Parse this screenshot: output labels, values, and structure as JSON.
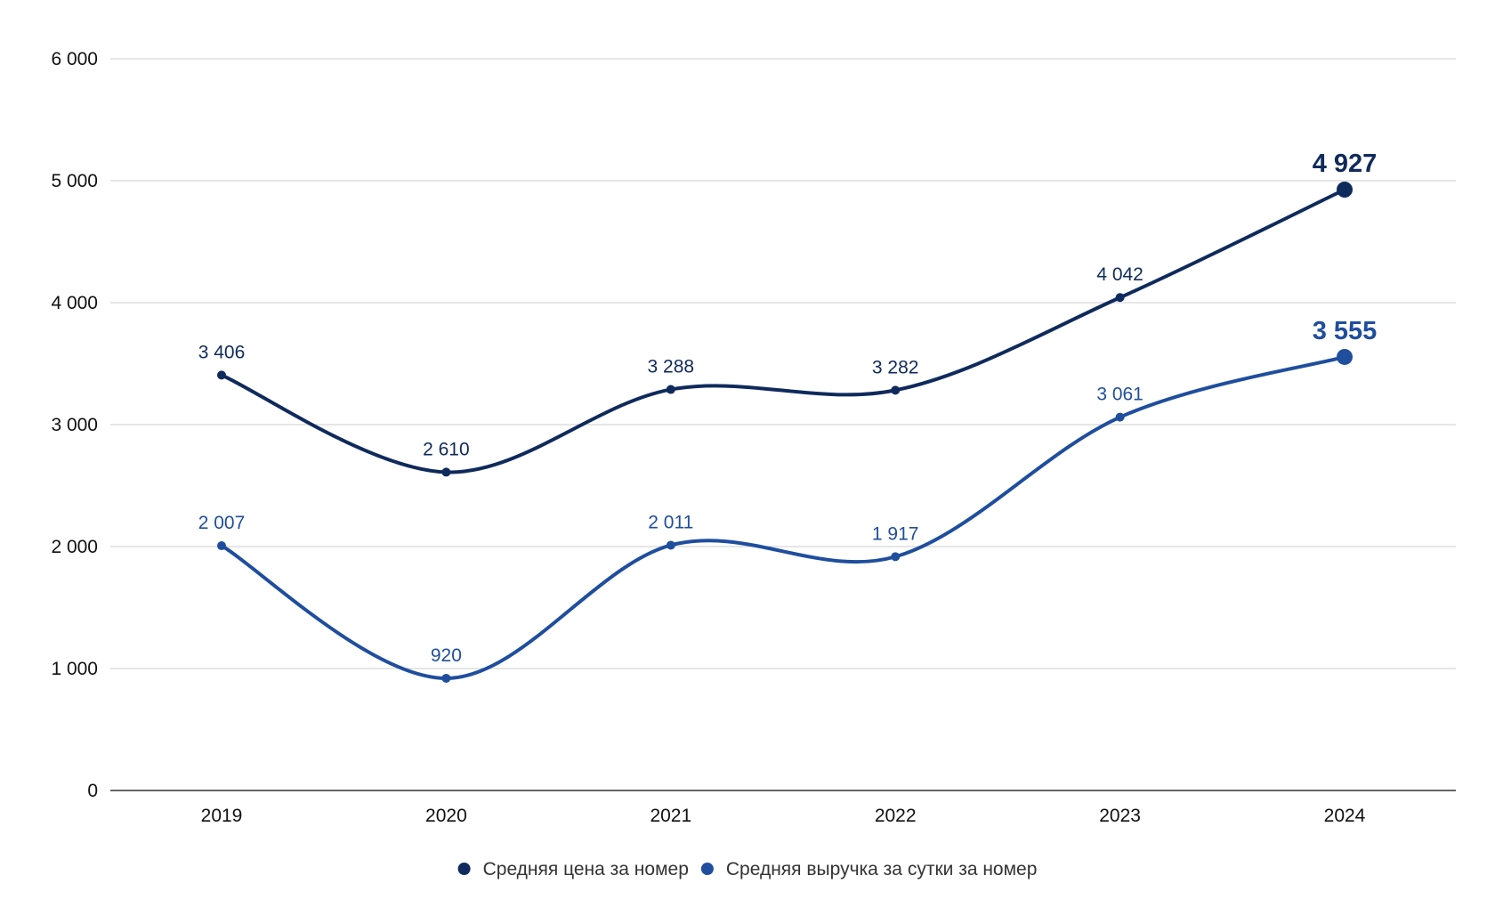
{
  "chart_data": {
    "type": "line",
    "categories": [
      "2019",
      "2020",
      "2021",
      "2022",
      "2023",
      "2024"
    ],
    "series": [
      {
        "name": "Средняя цена за номер",
        "values": [
          3406,
          2610,
          3288,
          3282,
          4042,
          4927
        ],
        "labels": [
          "3 406",
          "2 610",
          "3 288",
          "3 282",
          "4 042",
          "4 927"
        ],
        "color": "#0f2a5c"
      },
      {
        "name": "Средняя выручка за сутки за номер",
        "values": [
          2007,
          920,
          2011,
          1917,
          3061,
          3555
        ],
        "labels": [
          "2 007",
          "920",
          "2 011",
          "1 917",
          "3 061",
          "3 555"
        ],
        "color": "#1f4e9e"
      }
    ],
    "y_ticks": [
      0,
      1000,
      2000,
      3000,
      4000,
      5000,
      6000
    ],
    "y_tick_labels": [
      "0",
      "1 000",
      "2 000",
      "3 000",
      "4 000",
      "5 000",
      "6 000"
    ],
    "ylim": [
      0,
      6000
    ],
    "grid": true,
    "legend_position": "bottom",
    "title": "",
    "xlabel": "",
    "ylabel": ""
  }
}
